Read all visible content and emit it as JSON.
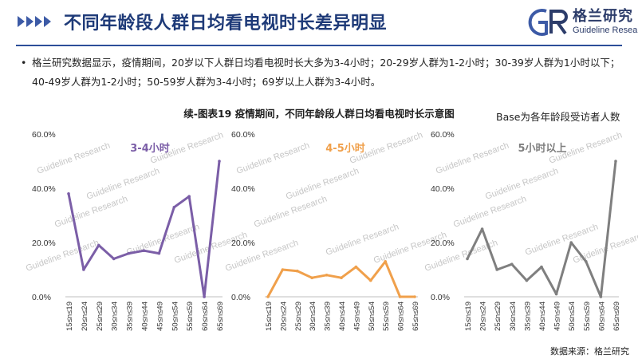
{
  "header": {
    "title": "不同年龄段人群日均看电视时长差异明显",
    "logo_cn": "格兰研究",
    "logo_en": "Guideline Research",
    "logo_letters": "GR"
  },
  "bullet": "格兰研究数据显示，疫情期间，20岁以下人群日均看电视时长大多为3-4小时；20-29岁人群为1-2小时；30-39岁人群为1小时以下；40-49岁人群为1-2小时；50-59岁人群为3-4小时；69岁以上人群为3-4小时。",
  "chart_title": "续-图表19  疫情期间，不同年龄段人群日均看电视时长示意图",
  "base_note": "Base为各年龄段受访者人数",
  "source": "数据来源：格兰研究",
  "watermark": "Guideline Research",
  "colors": {
    "title": "#1e3a78",
    "rule": "#2d4f9a",
    "purple": "#7b5ea7",
    "orange": "#f0a04b",
    "gray": "#7f7f7f"
  },
  "chart_data": [
    {
      "type": "line",
      "title": "3-4小时",
      "color": "#7b5ea7",
      "ylim": [
        0,
        60
      ],
      "yticks": [
        "0.0%",
        "20.0%",
        "40.0%",
        "60.0%"
      ],
      "categories": [
        "15≤n≤19",
        "20≤n≤24",
        "25≤n≤29",
        "30≤n≤34",
        "35≤n≤39",
        "40≤n≤44",
        "45≤n≤49",
        "50≤n≤54",
        "55≤n≤59",
        "60≤n≤64",
        "65≤n≤69"
      ],
      "values": [
        38,
        10,
        19,
        14,
        16,
        17,
        16,
        33,
        37,
        0,
        50
      ]
    },
    {
      "type": "line",
      "title": "4-5小时",
      "color": "#f0a04b",
      "ylim": [
        0,
        60
      ],
      "yticks": [
        "0.0%",
        "20.0%",
        "40.0%",
        "60.0%"
      ],
      "categories": [
        "15≤n≤19",
        "20≤n≤24",
        "25≤n≤29",
        "30≤n≤34",
        "35≤n≤39",
        "40≤n≤44",
        "45≤n≤49",
        "50≤n≤54",
        "55≤n≤59",
        "60≤n≤64",
        "65≤n≤69"
      ],
      "values": [
        0,
        10,
        9.5,
        7,
        8,
        7,
        11,
        6,
        13,
        0,
        0
      ]
    },
    {
      "type": "line",
      "title": "5小时以上",
      "color": "#7f7f7f",
      "ylim": [
        0,
        60
      ],
      "yticks": [
        "0.0%",
        "20.0%",
        "40.0%",
        "60.0%"
      ],
      "categories": [
        "15≤n≤19",
        "20≤n≤24",
        "25≤n≤29",
        "30≤n≤34",
        "35≤n≤39",
        "40≤n≤44",
        "45≤n≤49",
        "50≤n≤54",
        "55≤n≤59",
        "60≤n≤64",
        "65≤n≤69"
      ],
      "values": [
        14,
        25,
        10,
        12,
        6,
        11,
        1,
        20,
        13,
        0,
        50
      ]
    }
  ]
}
